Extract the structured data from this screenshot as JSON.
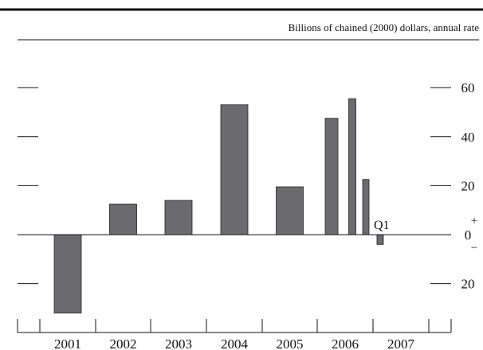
{
  "chart_data": {
    "type": "bar",
    "units_label": "Billions of chained (2000) dollars, annual rate",
    "y_ticks": [
      {
        "value": 60,
        "label": "60"
      },
      {
        "value": 40,
        "label": "40"
      },
      {
        "value": 20,
        "label": "20"
      },
      {
        "value": 0,
        "label": "0"
      },
      {
        "value": -20,
        "label": "20"
      }
    ],
    "zero_signs": {
      "plus": "+",
      "minus": "−"
    },
    "ylim": [
      -32,
      72
    ],
    "x_years": [
      "2001",
      "2002",
      "2003",
      "2004",
      "2005",
      "2006",
      "2007"
    ],
    "annual_bars": [
      {
        "year": "2001",
        "value": -32
      },
      {
        "year": "2002",
        "value": 12.5
      },
      {
        "year": "2003",
        "value": 14
      },
      {
        "year": "2004",
        "value": 53
      },
      {
        "year": "2005",
        "value": 19.5
      }
    ],
    "quarterly_bars": [
      {
        "period": "2006 Q1",
        "value": 47.5
      },
      {
        "period": "2006 Q2",
        "value": 55.5
      },
      {
        "period": "2006 Q3",
        "value": 22.5
      },
      {
        "period": "2006 Q4",
        "value": -4
      }
    ],
    "annotation": {
      "text": "Q1",
      "period": "2006 Q4"
    },
    "bar_color": "#6b6b6e",
    "axis_color": "#111111"
  }
}
